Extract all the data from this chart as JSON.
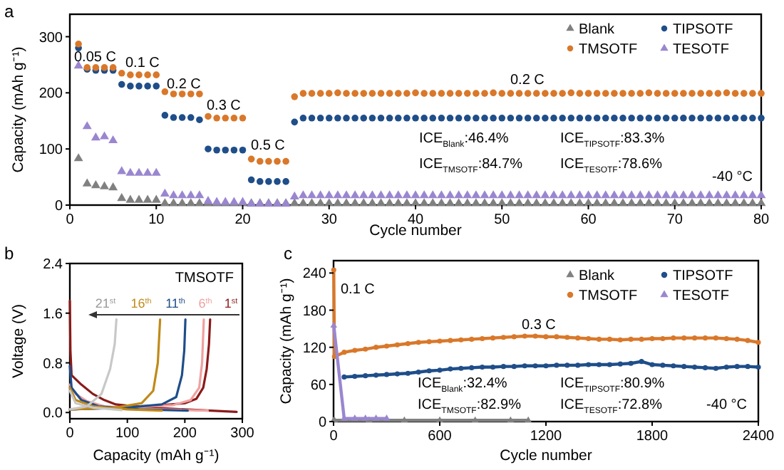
{
  "chart_data": [
    {
      "type": "scatter",
      "title": "a",
      "xlabel": "Cycle number",
      "ylabel": "Capacity (mAh g⁻¹)",
      "xlim": [
        0,
        80
      ],
      "ylim": [
        0,
        340
      ],
      "xticks": [
        0,
        10,
        20,
        30,
        40,
        50,
        60,
        70,
        80
      ],
      "yticks": [
        0,
        100,
        200,
        300
      ],
      "legend": "top right",
      "x": [
        1,
        2,
        3,
        4,
        5,
        6,
        7,
        8,
        9,
        10,
        11,
        12,
        13,
        14,
        15,
        16,
        17,
        18,
        19,
        20,
        21,
        22,
        23,
        24,
        25,
        26,
        27,
        28,
        29,
        30,
        31,
        32,
        33,
        34,
        35,
        36,
        37,
        38,
        39,
        40,
        41,
        42,
        43,
        44,
        45,
        46,
        47,
        48,
        49,
        50,
        51,
        52,
        53,
        54,
        55,
        56,
        57,
        58,
        59,
        60,
        61,
        62,
        63,
        64,
        65,
        66,
        67,
        68,
        69,
        70,
        71,
        72,
        73,
        74,
        75,
        76,
        77,
        78,
        79,
        80
      ],
      "series": [
        {
          "name": "Blank",
          "color": "#808080",
          "marker": "triangle",
          "values": [
            83,
            38,
            35,
            33,
            31,
            12,
            9,
            9,
            9,
            9,
            3,
            3,
            3,
            3,
            3,
            3,
            3,
            3,
            3,
            3,
            3,
            3,
            3,
            3,
            3,
            3,
            3,
            3,
            3,
            3,
            3,
            3,
            3,
            3,
            3,
            3,
            3,
            3,
            3,
            3,
            3,
            3,
            3,
            3,
            3,
            3,
            3,
            3,
            3,
            3,
            3,
            3,
            3,
            3,
            3,
            3,
            3,
            3,
            3,
            3,
            3,
            3,
            3,
            3,
            3,
            3,
            3,
            3,
            3,
            3,
            3,
            3,
            3,
            3,
            3,
            3,
            3,
            3,
            3,
            3
          ]
        },
        {
          "name": "TIPSOTF",
          "color": "#1f4e89",
          "marker": "circle",
          "values": [
            280,
            242,
            240,
            240,
            240,
            215,
            212,
            212,
            212,
            212,
            160,
            156,
            156,
            156,
            152,
            100,
            98,
            98,
            98,
            98,
            45,
            42,
            42,
            42,
            42,
            148,
            155,
            155,
            155,
            155,
            155,
            155,
            155,
            155,
            155,
            155,
            155,
            155,
            155,
            155,
            155,
            155,
            155,
            155,
            155,
            155,
            155,
            155,
            155,
            155,
            155,
            155,
            155,
            155,
            155,
            155,
            155,
            155,
            155,
            155,
            155,
            155,
            155,
            155,
            155,
            155,
            155,
            155,
            155,
            155,
            155,
            155,
            155,
            155,
            155,
            155,
            155,
            155,
            155,
            155
          ]
        },
        {
          "name": "TMSOTF",
          "color": "#d9782a",
          "marker": "circle",
          "values": [
            287,
            245,
            245,
            245,
            245,
            235,
            232,
            232,
            232,
            232,
            202,
            198,
            198,
            198,
            198,
            158,
            155,
            155,
            155,
            155,
            82,
            78,
            78,
            78,
            78,
            193,
            199,
            199,
            199,
            199,
            200,
            199,
            199,
            199,
            199,
            199,
            199,
            199,
            199,
            200,
            199,
            199,
            199,
            199,
            199,
            199,
            199,
            199,
            200,
            199,
            199,
            199,
            199,
            199,
            199,
            199,
            199,
            200,
            199,
            199,
            199,
            199,
            199,
            199,
            199,
            199,
            200,
            199,
            199,
            199,
            199,
            199,
            199,
            199,
            199,
            200,
            199,
            199,
            199,
            199
          ]
        },
        {
          "name": "TESOTF",
          "color": "#9a86d0",
          "marker": "triangle",
          "values": [
            248,
            140,
            120,
            122,
            115,
            60,
            57,
            57,
            57,
            57,
            20,
            17,
            17,
            17,
            17,
            7,
            5,
            5,
            5,
            5,
            2,
            2,
            2,
            2,
            2,
            15,
            17,
            17,
            17,
            17,
            17,
            17,
            17,
            17,
            17,
            17,
            17,
            17,
            17,
            17,
            17,
            17,
            17,
            17,
            17,
            17,
            17,
            17,
            17,
            17,
            17,
            17,
            17,
            17,
            17,
            17,
            17,
            17,
            17,
            17,
            17,
            17,
            17,
            17,
            17,
            17,
            17,
            17,
            17,
            17,
            17,
            17,
            17,
            17,
            17,
            17,
            17,
            17,
            17,
            17
          ]
        }
      ],
      "annotations": [
        "0.05 C",
        "0.1 C",
        "0.2 C",
        "0.3 C",
        "0.5 C",
        "0.2 C",
        "ICE$_{Blank}$:46.4%",
        "ICE$_{TIPSOTF}$:83.3%",
        "ICE$_{TMSOTF}$:84.7%",
        "ICE$_{TESOTF}$:78.6%",
        "-40 °C"
      ]
    },
    {
      "type": "line",
      "title": "b",
      "xlabel": "Capacity (mAh g⁻¹)",
      "ylabel": "Voltage (V)",
      "xlim": [
        0,
        300
      ],
      "ylim": [
        -0.1,
        2.4
      ],
      "xticks": [
        0,
        100,
        200,
        300
      ],
      "yticks": [
        {
          "value": 0,
          "label": "0.0"
        },
        0.8,
        1.6,
        2.4
      ],
      "series": [
        {
          "name": "1$^{st}$",
          "color": "#8b1a1a",
          "x": [
            0,
            1,
            3,
            20,
            40,
            60,
            80,
            120,
            200,
            290,
            null,
            0,
            50,
            100,
            150,
            200,
            220,
            232,
            238,
            242,
            244
          ],
          "values": [
            1.8,
            1.0,
            0.6,
            0.45,
            0.3,
            0.2,
            0.13,
            0.09,
            0.05,
            0.01,
            null,
            0.05,
            0.07,
            0.09,
            0.11,
            0.15,
            0.22,
            0.4,
            0.7,
            1.1,
            1.5
          ]
        },
        {
          "name": "6$^{th}$",
          "color": "#f0a0a0",
          "x": [
            0,
            10,
            30,
            60,
            120,
            200,
            240,
            null,
            0,
            100,
            180,
            210,
            225,
            230,
            233
          ],
          "values": [
            0.45,
            0.3,
            0.18,
            0.1,
            0.06,
            0.04,
            0.03,
            null,
            0.05,
            0.08,
            0.12,
            0.2,
            0.4,
            0.8,
            1.5
          ]
        },
        {
          "name": "11$^{th}$",
          "color": "#1f4e89",
          "x": [
            0,
            3,
            20,
            50,
            120,
            205,
            null,
            0,
            100,
            160,
            185,
            195,
            199,
            201
          ],
          "values": [
            0.75,
            0.4,
            0.2,
            0.1,
            0.05,
            0.03,
            null,
            0.05,
            0.08,
            0.13,
            0.25,
            0.6,
            1.0,
            1.5
          ]
        },
        {
          "name": "16$^{th}$",
          "color": "#c08a1a",
          "x": [
            0,
            10,
            40,
            100,
            160,
            null,
            0,
            80,
            125,
            145,
            153,
            157
          ],
          "values": [
            0.4,
            0.2,
            0.1,
            0.05,
            0.03,
            null,
            0.05,
            0.08,
            0.15,
            0.35,
            0.8,
            1.5
          ]
        },
        {
          "name": "21$^{st}$",
          "color": "#c8c8c8",
          "x": [
            0,
            10,
            40,
            90,
            null,
            0,
            30,
            55,
            70,
            78,
            81
          ],
          "values": [
            0.35,
            0.15,
            0.08,
            0.04,
            null,
            0.05,
            0.1,
            0.3,
            0.7,
            1.1,
            1.5
          ]
        }
      ],
      "annotations": [
        "TMSOTF"
      ]
    },
    {
      "type": "line",
      "title": "c",
      "xlabel": "Cycle number",
      "ylabel": "Capacity (mAh g⁻¹)",
      "xlim": [
        0,
        2400
      ],
      "ylim": [
        0,
        260
      ],
      "xticks": [
        0,
        600,
        1200,
        1800,
        2400
      ],
      "yticks": [
        0,
        60,
        120,
        180,
        240
      ],
      "legend": "top right",
      "marker": "circle",
      "series": [
        {
          "name": "Blank",
          "color": "#808080",
          "marker": "triangle",
          "x": [
            1,
            5,
            200,
            400,
            600,
            800,
            1000,
            1100
          ],
          "values": [
            2,
            2,
            2,
            2,
            2,
            2,
            2,
            2
          ]
        },
        {
          "name": "TIPSOTF",
          "color": "#1f4e89",
          "x": [
            60,
            120,
            180,
            240,
            300,
            360,
            420,
            480,
            540,
            600,
            660,
            720,
            780,
            840,
            900,
            960,
            1020,
            1080,
            1140,
            1200,
            1260,
            1320,
            1380,
            1440,
            1500,
            1560,
            1620,
            1680,
            1740,
            1800,
            1860,
            1920,
            1980,
            2040,
            2100,
            2160,
            2220,
            2280,
            2340,
            2400
          ],
          "values": [
            72,
            73,
            74,
            75,
            76,
            77,
            78,
            80,
            82,
            83,
            85,
            86,
            87,
            88,
            88,
            89,
            89,
            90,
            90,
            90,
            91,
            91,
            91,
            92,
            92,
            92,
            93,
            94,
            97,
            92,
            91,
            90,
            89,
            88,
            87,
            86,
            88,
            89,
            89,
            88
          ]
        },
        {
          "name": "TMSOTF",
          "color": "#d9782a",
          "x": [
            1,
            5,
            60,
            120,
            180,
            240,
            300,
            360,
            420,
            480,
            540,
            600,
            660,
            720,
            780,
            840,
            900,
            960,
            1020,
            1080,
            1140,
            1200,
            1260,
            1320,
            1380,
            1440,
            1500,
            1560,
            1620,
            1680,
            1740,
            1800,
            1860,
            1920,
            1980,
            2040,
            2100,
            2160,
            2220,
            2280,
            2340,
            2400
          ],
          "values": [
            245,
            105,
            112,
            115,
            117,
            120,
            122,
            124,
            126,
            128,
            129,
            130,
            131,
            132,
            133,
            134,
            135,
            136,
            137,
            138,
            138,
            137,
            137,
            136,
            135,
            134,
            133,
            133,
            132,
            133,
            133,
            134,
            134,
            135,
            135,
            135,
            135,
            135,
            134,
            133,
            131,
            128
          ]
        },
        {
          "name": "TESOTF",
          "color": "#9a86d0",
          "marker": "triangle",
          "x": [
            1,
            60,
            120,
            180,
            240,
            300
          ],
          "values": [
            155,
            5,
            5,
            5,
            5,
            5
          ]
        }
      ],
      "annotations": [
        "0.1 C",
        "0.3 C",
        "ICE$_{Blank}$:32.4%",
        "ICE$_{TIPSOTF}$:80.9%",
        "ICE$_{TMSOTF}$:82.9%",
        "ICE$_{TESOTF}$:72.8%",
        "-40 °C"
      ]
    }
  ]
}
